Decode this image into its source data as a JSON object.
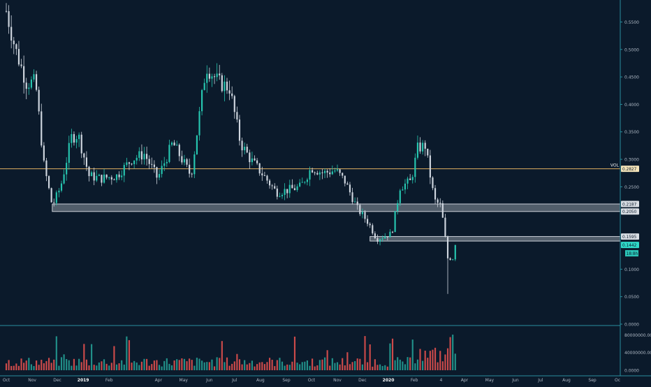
{
  "chart_data": {
    "type": "candlestick",
    "price_axis": {
      "ticks": [
        "0.5500",
        "0.5000",
        "0.4500",
        "0.4000",
        "0.3500",
        "0.3000",
        "0.2500",
        "0.1000",
        "0.0500",
        "0.0000"
      ],
      "tick_values": [
        0.55,
        0.5,
        0.45,
        0.4,
        0.35,
        0.3,
        0.25,
        0.1,
        0.05,
        0.0
      ],
      "ylim": [
        0.0,
        0.59
      ]
    },
    "time_axis": {
      "labels": [
        "Oct",
        "Nov",
        "Dec",
        "2019",
        "Feb",
        "Apr",
        "May",
        "Jun",
        "Jul",
        "Aug",
        "Sep",
        "Oct",
        "Nov",
        "Dec",
        "2020",
        "Feb",
        "4",
        "Apr",
        "May",
        "Jun",
        "Jul",
        "Aug",
        "Sep",
        "Oc"
      ],
      "dates": [
        "2018-10-01",
        "2018-11-01",
        "2018-12-01",
        "2019-01-01",
        "2019-02-01",
        "2019-04-01",
        "2019-05-01",
        "2019-06-01",
        "2019-07-01",
        "2019-08-01",
        "2019-09-01",
        "2019-10-01",
        "2019-11-01",
        "2019-12-01",
        "2020-01-01",
        "2020-02-01",
        "2020-03-04",
        "2020-04-01",
        "2020-05-01",
        "2020-06-01",
        "2020-07-01",
        "2020-08-01",
        "2020-09-01",
        "2020-10-01"
      ],
      "bold": [
        "2019",
        "2020"
      ]
    },
    "horizontal_line": {
      "label": "VOL",
      "value": 0.2827,
      "tag": "0.2827"
    },
    "zones": [
      {
        "name": "upper-zone",
        "from_date": "2018-11-25",
        "to_date": "2020-10-01",
        "top": 0.2187,
        "bottom": 0.205,
        "tags": [
          "0.2187",
          "0.2050"
        ]
      },
      {
        "name": "lower-zone",
        "from_date": "2019-12-10",
        "to_date": "2020-10-01",
        "top": 0.1595,
        "bottom": 0.1512,
        "tags": [
          "0.1595"
        ]
      }
    ],
    "last_price": {
      "value": 0.1442,
      "tag": "0.1442",
      "countdown": "18:8h"
    },
    "candle_points": [
      [
        "2018-10-01",
        0.57
      ],
      [
        "2018-10-12",
        0.5
      ],
      [
        "2018-10-25",
        0.44
      ],
      [
        "2018-11-05",
        0.44
      ],
      [
        "2018-11-15",
        0.29
      ],
      [
        "2018-11-25",
        0.215
      ],
      [
        "2018-12-05",
        0.25
      ],
      [
        "2018-12-18",
        0.34
      ],
      [
        "2018-12-26",
        0.345
      ],
      [
        "2019-01-08",
        0.27
      ],
      [
        "2019-01-22",
        0.265
      ],
      [
        "2019-02-10",
        0.27
      ],
      [
        "2019-02-28",
        0.3
      ],
      [
        "2019-03-15",
        0.31
      ],
      [
        "2019-03-31",
        0.265
      ],
      [
        "2019-04-18",
        0.33
      ],
      [
        "2019-05-10",
        0.27
      ],
      [
        "2019-05-28",
        0.47
      ],
      [
        "2019-06-12",
        0.44
      ],
      [
        "2019-06-25",
        0.43
      ],
      [
        "2019-07-08",
        0.33
      ],
      [
        "2019-07-20",
        0.3
      ],
      [
        "2019-08-05",
        0.27
      ],
      [
        "2019-08-20",
        0.24
      ],
      [
        "2019-09-05",
        0.245
      ],
      [
        "2019-09-18",
        0.25
      ],
      [
        "2019-10-01",
        0.285
      ],
      [
        "2019-10-15",
        0.275
      ],
      [
        "2019-10-30",
        0.28
      ],
      [
        "2019-11-10",
        0.26
      ],
      [
        "2019-11-25",
        0.21
      ],
      [
        "2019-12-08",
        0.185
      ],
      [
        "2019-12-18",
        0.155
      ],
      [
        "2020-01-05",
        0.165
      ],
      [
        "2020-01-15",
        0.25
      ],
      [
        "2020-01-28",
        0.26
      ],
      [
        "2020-02-05",
        0.32
      ],
      [
        "2020-02-14",
        0.325
      ],
      [
        "2020-02-25",
        0.225
      ],
      [
        "2020-03-04",
        0.215
      ],
      [
        "2020-03-12",
        0.12
      ],
      [
        "2020-03-18",
        0.12
      ],
      [
        "2020-03-22",
        0.1442
      ]
    ],
    "volume_axis": {
      "ticks": [
        "80000000.0000",
        "40000000.0000",
        "0.0000"
      ],
      "tick_values": [
        80000000,
        40000000,
        0
      ],
      "ylim": [
        0,
        98000000
      ]
    },
    "colors": {
      "background": "#0b1a2b",
      "up": "#26c6b0",
      "down": "#cfd6df",
      "volume_up": "#26a69a",
      "volume_down": "#ef5350",
      "zone": "#c9ced6",
      "vol_line": "#e0b060",
      "axis_line": "#2a8f9f",
      "tag_bg": "#d8dde3",
      "last_bg": "#2fd9c8"
    }
  }
}
